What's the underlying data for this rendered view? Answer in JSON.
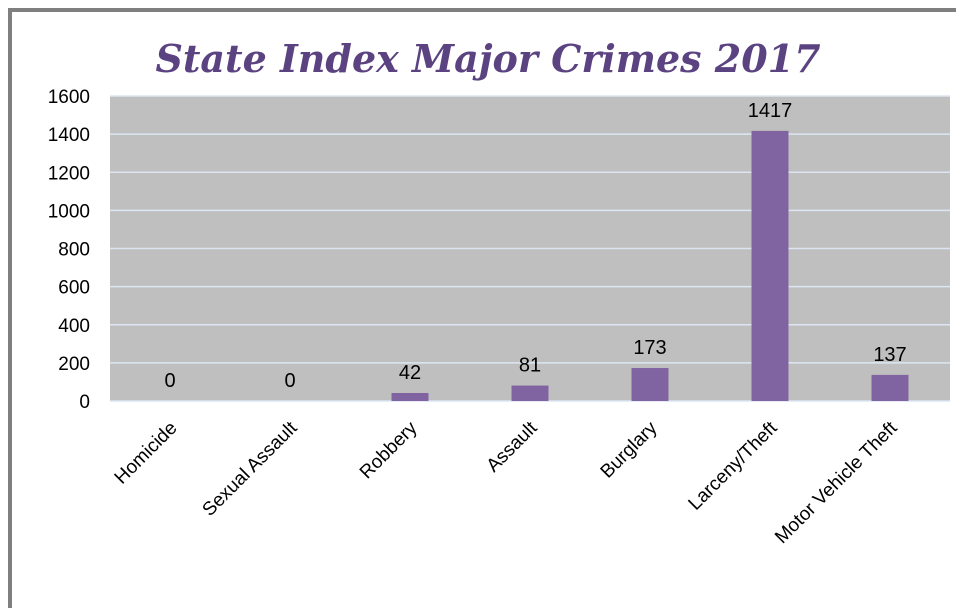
{
  "chart_data": {
    "type": "bar",
    "title": "State Index Major Crimes 2017",
    "categories": [
      "Homicide",
      "Sexual Assault",
      "Robbery",
      "Assault",
      "Burglary",
      "Larceny/Theft",
      "Motor Vehicle Theft"
    ],
    "values": [
      0,
      0,
      42,
      81,
      173,
      1417,
      137
    ],
    "data_labels": [
      "0",
      "0",
      "42",
      "81",
      "173",
      "1417",
      "137"
    ],
    "ylim": [
      0,
      1600
    ],
    "yticks": [
      0,
      200,
      400,
      600,
      800,
      1000,
      1200,
      1400,
      1600
    ],
    "xlabel": "",
    "ylabel": "",
    "grid": true,
    "legend": "none",
    "colors": {
      "bar": "#8064a2",
      "plot_background": "#bfbfbf",
      "gridline": "#dce6f2",
      "title": "#5b4280",
      "frame": "#7f7f7f"
    }
  }
}
